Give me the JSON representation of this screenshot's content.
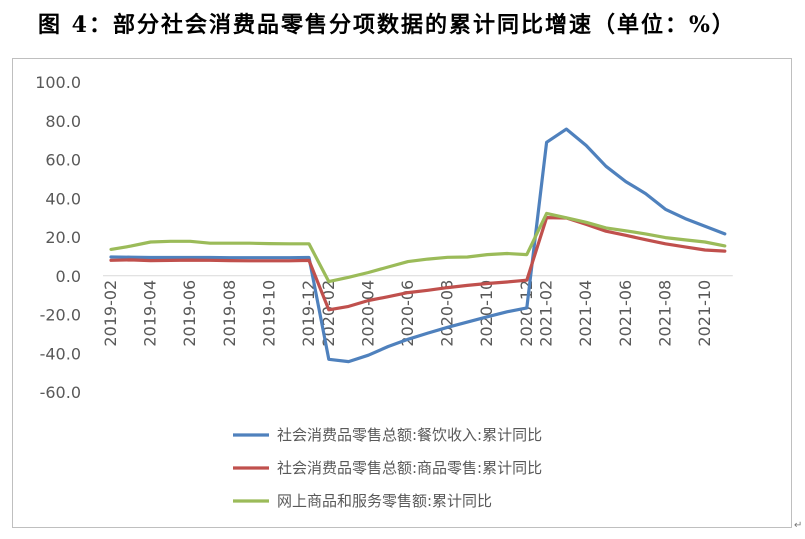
{
  "figure": {
    "title": "图 4：部分社会消费品零售分项数据的累计同比增速（单位：%）"
  },
  "chart_data": {
    "type": "line",
    "title": "",
    "xlabel": "",
    "ylabel": "",
    "ylim": [
      -60,
      100
    ],
    "yticks": [
      100,
      80,
      60,
      40,
      20,
      0,
      -20,
      -40,
      -60
    ],
    "ytick_labels": [
      "100.0",
      "80.0",
      "60.0",
      "40.0",
      "20.0",
      "0.0",
      "-20.0",
      "-40.0",
      "-60.0"
    ],
    "x": [
      "2019-02",
      "2019-03",
      "2019-04",
      "2019-05",
      "2019-06",
      "2019-07",
      "2019-08",
      "2019-09",
      "2019-10",
      "2019-11",
      "2019-12",
      "2020-02",
      "2020-03",
      "2020-04",
      "2020-05",
      "2020-06",
      "2020-07",
      "2020-08",
      "2020-09",
      "2020-10",
      "2020-11",
      "2020-12",
      "2021-02",
      "2021-03",
      "2021-04",
      "2021-05",
      "2021-06",
      "2021-07",
      "2021-08",
      "2021-09",
      "2021-10",
      "2021-11"
    ],
    "xtick_labels": [
      "2019-02",
      "2019-04",
      "2019-06",
      "2019-08",
      "2019-10",
      "2019-12",
      "2020-02",
      "2020-04",
      "2020-06",
      "2020-08",
      "2020-10",
      "2020-12",
      "2021-02",
      "2021-04",
      "2021-06",
      "2021-08",
      "2021-10"
    ],
    "grid": false,
    "legend_position": "bottom",
    "series": [
      {
        "name": "社会消费品零售总额:餐饮收入:累计同比",
        "color": "#4f81bd",
        "values": [
          9.7,
          9.6,
          9.4,
          9.4,
          9.4,
          9.4,
          9.3,
          9.3,
          9.3,
          9.3,
          9.4,
          -43.1,
          -44.3,
          -41.0,
          -36.5,
          -32.8,
          -29.6,
          -26.6,
          -23.9,
          -21.2,
          -18.6,
          -16.6,
          68.9,
          75.7,
          67.2,
          56.5,
          48.6,
          42.4,
          34.3,
          29.5,
          25.6,
          21.6
        ]
      },
      {
        "name": "社会消费品零售总额:商品零售:累计同比",
        "color": "#c0504d",
        "values": [
          8.0,
          8.2,
          7.8,
          7.9,
          8.1,
          8.0,
          7.8,
          7.7,
          7.7,
          7.7,
          7.9,
          -17.6,
          -15.8,
          -12.8,
          -10.8,
          -8.7,
          -7.5,
          -6.1,
          -5.0,
          -4.0,
          -3.2,
          -2.3,
          30.0,
          29.8,
          26.5,
          23.0,
          20.9,
          18.6,
          16.5,
          14.9,
          13.3,
          12.7
        ]
      },
      {
        "name": "网上商品和服务零售额:累计同比",
        "color": "#9bbb59",
        "values": [
          13.6,
          15.3,
          17.4,
          17.8,
          17.8,
          16.8,
          16.8,
          16.8,
          16.6,
          16.5,
          16.5,
          -3.0,
          -0.8,
          1.7,
          4.5,
          7.3,
          8.6,
          9.5,
          9.7,
          10.9,
          11.5,
          10.9,
          32.2,
          29.9,
          27.6,
          24.7,
          23.2,
          21.6,
          19.7,
          18.5,
          17.4,
          15.4
        ]
      }
    ]
  }
}
